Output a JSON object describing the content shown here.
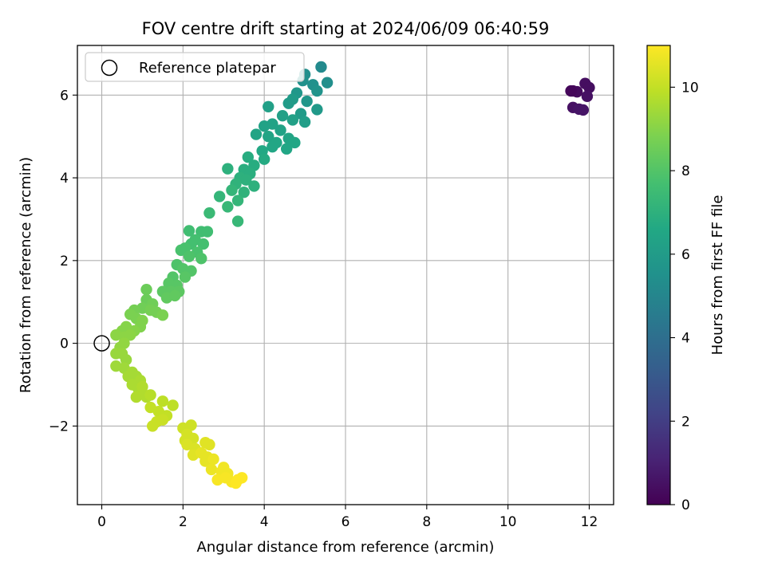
{
  "chart_data": {
    "type": "scatter",
    "title": "FOV centre drift starting at 2024/06/09 06:40:59",
    "xlabel": "Angular distance from reference (arcmin)",
    "ylabel": "Rotation from reference (arcmin)",
    "xlim": [
      -0.6,
      12.6
    ],
    "ylim": [
      -3.9,
      7.2
    ],
    "xticks": [
      0,
      2,
      4,
      6,
      8,
      10,
      12
    ],
    "yticks": [
      -2,
      0,
      2,
      4,
      6
    ],
    "xtick_labels": [
      "0",
      "2",
      "4",
      "6",
      "8",
      "10",
      "12"
    ],
    "ytick_labels": [
      "−2",
      "0",
      "2",
      "4",
      "6"
    ],
    "grid": true,
    "legend": {
      "position": "top-left",
      "label": "Reference platepar"
    },
    "reference_point": {
      "x": 0,
      "y": 0
    },
    "colorbar": {
      "label": "Hours from first FF file",
      "colormap": "viridis",
      "range": [
        0,
        11
      ],
      "ticks": [
        0,
        2,
        4,
        6,
        8,
        10
      ],
      "tick_labels": [
        "0",
        "2",
        "4",
        "6",
        "8",
        "10"
      ]
    },
    "series": [
      {
        "points": [
          {
            "x": 11.6,
            "y": 6.1,
            "h": 0.2
          },
          {
            "x": 11.7,
            "y": 6.08,
            "h": 0.3
          },
          {
            "x": 11.55,
            "y": 6.1,
            "h": 0.2
          },
          {
            "x": 11.9,
            "y": 6.28,
            "h": 0.4
          },
          {
            "x": 12.0,
            "y": 6.18,
            "h": 0.4
          },
          {
            "x": 11.95,
            "y": 5.97,
            "h": 0.5
          },
          {
            "x": 11.6,
            "y": 5.7,
            "h": 0.5
          },
          {
            "x": 11.75,
            "y": 5.66,
            "h": 0.6
          },
          {
            "x": 11.85,
            "y": 5.64,
            "h": 0.6
          },
          {
            "x": 5.4,
            "y": 6.68,
            "h": 5.2
          },
          {
            "x": 5.0,
            "y": 6.5,
            "h": 5.4
          },
          {
            "x": 4.95,
            "y": 6.35,
            "h": 5.5
          },
          {
            "x": 5.2,
            "y": 6.25,
            "h": 5.5
          },
          {
            "x": 5.55,
            "y": 6.3,
            "h": 5.4
          },
          {
            "x": 5.3,
            "y": 6.1,
            "h": 5.6
          },
          {
            "x": 5.05,
            "y": 5.85,
            "h": 5.8
          },
          {
            "x": 4.8,
            "y": 6.05,
            "h": 5.8
          },
          {
            "x": 4.6,
            "y": 5.8,
            "h": 6.0
          },
          {
            "x": 5.3,
            "y": 5.65,
            "h": 5.9
          },
          {
            "x": 4.9,
            "y": 5.55,
            "h": 6.0
          },
          {
            "x": 4.7,
            "y": 5.9,
            "h": 6.0
          },
          {
            "x": 4.1,
            "y": 5.72,
            "h": 6.2
          },
          {
            "x": 4.45,
            "y": 5.5,
            "h": 6.2
          },
          {
            "x": 5.0,
            "y": 5.35,
            "h": 6.1
          },
          {
            "x": 4.7,
            "y": 5.4,
            "h": 6.2
          },
          {
            "x": 4.2,
            "y": 5.3,
            "h": 6.3
          },
          {
            "x": 4.0,
            "y": 5.25,
            "h": 6.3
          },
          {
            "x": 3.8,
            "y": 5.05,
            "h": 6.4
          },
          {
            "x": 4.1,
            "y": 5.0,
            "h": 6.4
          },
          {
            "x": 4.4,
            "y": 5.15,
            "h": 6.3
          },
          {
            "x": 4.6,
            "y": 4.95,
            "h": 6.4
          },
          {
            "x": 4.3,
            "y": 4.85,
            "h": 6.5
          },
          {
            "x": 4.55,
            "y": 4.7,
            "h": 6.5
          },
          {
            "x": 4.2,
            "y": 4.75,
            "h": 6.5
          },
          {
            "x": 3.95,
            "y": 4.65,
            "h": 6.6
          },
          {
            "x": 4.75,
            "y": 4.85,
            "h": 6.5
          },
          {
            "x": 4.0,
            "y": 4.45,
            "h": 6.7
          },
          {
            "x": 3.6,
            "y": 4.5,
            "h": 6.8
          },
          {
            "x": 3.75,
            "y": 4.3,
            "h": 6.8
          },
          {
            "x": 3.5,
            "y": 4.2,
            "h": 6.9
          },
          {
            "x": 3.65,
            "y": 4.1,
            "h": 6.9
          },
          {
            "x": 3.4,
            "y": 4.0,
            "h": 7.0
          },
          {
            "x": 3.1,
            "y": 4.22,
            "h": 7.0
          },
          {
            "x": 3.55,
            "y": 3.95,
            "h": 7.0
          },
          {
            "x": 3.75,
            "y": 3.8,
            "h": 7.0
          },
          {
            "x": 3.3,
            "y": 3.85,
            "h": 7.1
          },
          {
            "x": 3.5,
            "y": 3.65,
            "h": 7.1
          },
          {
            "x": 3.2,
            "y": 3.7,
            "h": 7.2
          },
          {
            "x": 2.9,
            "y": 3.55,
            "h": 7.2
          },
          {
            "x": 3.35,
            "y": 3.45,
            "h": 7.2
          },
          {
            "x": 3.1,
            "y": 3.3,
            "h": 7.3
          },
          {
            "x": 3.35,
            "y": 2.95,
            "h": 7.3
          },
          {
            "x": 2.65,
            "y": 3.15,
            "h": 7.4
          },
          {
            "x": 2.15,
            "y": 2.72,
            "h": 7.6
          },
          {
            "x": 2.45,
            "y": 2.7,
            "h": 7.6
          },
          {
            "x": 2.6,
            "y": 2.7,
            "h": 7.6
          },
          {
            "x": 2.3,
            "y": 2.5,
            "h": 7.7
          },
          {
            "x": 2.2,
            "y": 2.4,
            "h": 7.7
          },
          {
            "x": 2.5,
            "y": 2.4,
            "h": 7.7
          },
          {
            "x": 2.05,
            "y": 2.3,
            "h": 7.8
          },
          {
            "x": 2.35,
            "y": 2.2,
            "h": 7.8
          },
          {
            "x": 1.95,
            "y": 2.25,
            "h": 7.8
          },
          {
            "x": 2.15,
            "y": 2.1,
            "h": 7.9
          },
          {
            "x": 2.45,
            "y": 2.05,
            "h": 7.9
          },
          {
            "x": 1.85,
            "y": 1.9,
            "h": 7.9
          },
          {
            "x": 2.0,
            "y": 1.8,
            "h": 8.0
          },
          {
            "x": 2.2,
            "y": 1.75,
            "h": 8.0
          },
          {
            "x": 1.75,
            "y": 1.6,
            "h": 8.0
          },
          {
            "x": 2.05,
            "y": 1.6,
            "h": 8.1
          },
          {
            "x": 1.65,
            "y": 1.45,
            "h": 8.1
          },
          {
            "x": 1.85,
            "y": 1.4,
            "h": 8.1
          },
          {
            "x": 1.5,
            "y": 1.25,
            "h": 8.2
          },
          {
            "x": 1.7,
            "y": 1.25,
            "h": 8.2
          },
          {
            "x": 1.9,
            "y": 1.25,
            "h": 8.2
          },
          {
            "x": 1.6,
            "y": 1.1,
            "h": 8.3
          },
          {
            "x": 1.8,
            "y": 1.15,
            "h": 8.3
          },
          {
            "x": 1.1,
            "y": 1.3,
            "h": 8.5
          },
          {
            "x": 1.1,
            "y": 1.05,
            "h": 8.5
          },
          {
            "x": 1.25,
            "y": 0.95,
            "h": 8.6
          },
          {
            "x": 1.0,
            "y": 0.85,
            "h": 8.6
          },
          {
            "x": 1.2,
            "y": 0.8,
            "h": 8.7
          },
          {
            "x": 1.35,
            "y": 0.75,
            "h": 8.7
          },
          {
            "x": 0.8,
            "y": 0.8,
            "h": 8.7
          },
          {
            "x": 0.85,
            "y": 0.6,
            "h": 8.8
          },
          {
            "x": 0.7,
            "y": 0.7,
            "h": 8.8
          },
          {
            "x": 1.5,
            "y": 0.68,
            "h": 8.8
          },
          {
            "x": 1.0,
            "y": 0.55,
            "h": 8.9
          },
          {
            "x": 0.95,
            "y": 0.4,
            "h": 8.9
          },
          {
            "x": 0.8,
            "y": 0.3,
            "h": 9.0
          },
          {
            "x": 0.6,
            "y": 0.4,
            "h": 9.0
          },
          {
            "x": 0.5,
            "y": 0.3,
            "h": 9.0
          },
          {
            "x": 0.35,
            "y": 0.2,
            "h": 9.1
          },
          {
            "x": 0.55,
            "y": 0.15,
            "h": 9.1
          },
          {
            "x": 0.7,
            "y": 0.2,
            "h": 9.1
          },
          {
            "x": 0.55,
            "y": 0.0,
            "h": 9.2
          },
          {
            "x": 0.45,
            "y": -0.1,
            "h": 9.2
          },
          {
            "x": 0.35,
            "y": -0.25,
            "h": 9.3
          },
          {
            "x": 0.5,
            "y": -0.25,
            "h": 9.3
          },
          {
            "x": 0.6,
            "y": -0.4,
            "h": 9.3
          },
          {
            "x": 0.35,
            "y": -0.55,
            "h": 9.4
          },
          {
            "x": 0.55,
            "y": -0.6,
            "h": 9.4
          },
          {
            "x": 0.65,
            "y": -0.8,
            "h": 9.5
          },
          {
            "x": 0.75,
            "y": -0.7,
            "h": 9.5
          },
          {
            "x": 0.85,
            "y": -0.8,
            "h": 9.5
          },
          {
            "x": 0.95,
            "y": -0.9,
            "h": 9.6
          },
          {
            "x": 0.75,
            "y": -1.0,
            "h": 9.6
          },
          {
            "x": 0.9,
            "y": -1.1,
            "h": 9.6
          },
          {
            "x": 1.0,
            "y": -1.2,
            "h": 9.7
          },
          {
            "x": 0.85,
            "y": -1.3,
            "h": 9.7
          },
          {
            "x": 1.1,
            "y": -1.3,
            "h": 9.7
          },
          {
            "x": 1.2,
            "y": -1.25,
            "h": 9.8
          },
          {
            "x": 1.0,
            "y": -1.05,
            "h": 9.7
          },
          {
            "x": 1.5,
            "y": -1.4,
            "h": 9.9
          },
          {
            "x": 1.75,
            "y": -1.5,
            "h": 9.9
          },
          {
            "x": 1.2,
            "y": -1.55,
            "h": 10.0
          },
          {
            "x": 1.4,
            "y": -1.65,
            "h": 10.0
          },
          {
            "x": 1.6,
            "y": -1.75,
            "h": 10.0
          },
          {
            "x": 1.5,
            "y": -1.85,
            "h": 10.1
          },
          {
            "x": 1.35,
            "y": -1.9,
            "h": 10.1
          },
          {
            "x": 1.25,
            "y": -2.0,
            "h": 10.1
          },
          {
            "x": 2.0,
            "y": -2.05,
            "h": 10.2
          },
          {
            "x": 2.2,
            "y": -1.98,
            "h": 10.2
          },
          {
            "x": 2.1,
            "y": -2.2,
            "h": 10.3
          },
          {
            "x": 2.05,
            "y": -2.35,
            "h": 10.3
          },
          {
            "x": 2.25,
            "y": -2.3,
            "h": 10.3
          },
          {
            "x": 2.1,
            "y": -2.45,
            "h": 10.4
          },
          {
            "x": 2.3,
            "y": -2.55,
            "h": 10.4
          },
          {
            "x": 2.55,
            "y": -2.4,
            "h": 10.5
          },
          {
            "x": 2.65,
            "y": -2.45,
            "h": 10.5
          },
          {
            "x": 2.25,
            "y": -2.7,
            "h": 10.5
          },
          {
            "x": 2.45,
            "y": -2.65,
            "h": 10.6
          },
          {
            "x": 2.6,
            "y": -2.75,
            "h": 10.6
          },
          {
            "x": 2.55,
            "y": -2.85,
            "h": 10.6
          },
          {
            "x": 2.75,
            "y": -2.8,
            "h": 10.7
          },
          {
            "x": 2.7,
            "y": -3.05,
            "h": 10.7
          },
          {
            "x": 2.95,
            "y": -3.1,
            "h": 10.8
          },
          {
            "x": 3.0,
            "y": -3.0,
            "h": 10.8
          },
          {
            "x": 3.1,
            "y": -3.15,
            "h": 10.8
          },
          {
            "x": 2.85,
            "y": -3.3,
            "h": 10.9
          },
          {
            "x": 3.05,
            "y": -3.25,
            "h": 10.9
          },
          {
            "x": 3.2,
            "y": -3.35,
            "h": 10.9
          },
          {
            "x": 3.35,
            "y": -3.3,
            "h": 11.0
          },
          {
            "x": 3.45,
            "y": -3.25,
            "h": 11.0
          },
          {
            "x": 3.3,
            "y": -3.38,
            "h": 11.0
          }
        ]
      }
    ]
  }
}
